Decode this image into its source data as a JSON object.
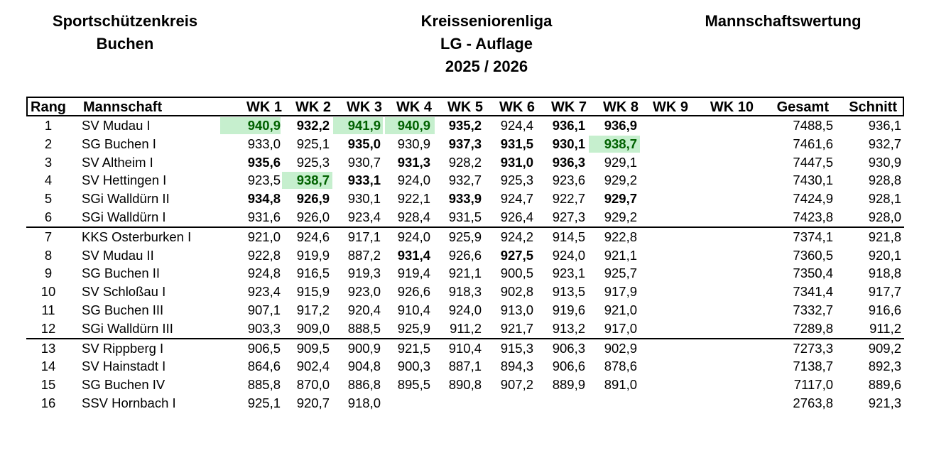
{
  "header": {
    "left": [
      "Sportschützenkreis",
      "Buchen"
    ],
    "center": [
      "Kreisseniorenliga",
      "LG - Auflage",
      "2025 / 2026"
    ],
    "right": "Mannschaftswertung"
  },
  "columns": [
    "Rang",
    "Mannschaft",
    "WK 1",
    "WK 2",
    "WK 3",
    "WK 4",
    "WK 5",
    "WK 6",
    "WK 7",
    "WK 8",
    "WK 9",
    "WK 10",
    "Gesamt",
    "Schnitt"
  ],
  "colors": {
    "highlight_bg": "#c6efce",
    "highlight_text": "#006100"
  },
  "rows": [
    {
      "rank": "1",
      "team": "SV Mudau I",
      "wk": [
        "940,9",
        "932,2",
        "941,9",
        "940,9",
        "935,2",
        "924,4",
        "936,1",
        "936,9",
        "",
        ""
      ],
      "bold": [
        1,
        1,
        1,
        1,
        1,
        0,
        1,
        1,
        0,
        0
      ],
      "hl": [
        1,
        0,
        1,
        1,
        0,
        0,
        0,
        0,
        0,
        0
      ],
      "gesamt": "7488,5",
      "schnitt": "936,1"
    },
    {
      "rank": "2",
      "team": "SG Buchen I",
      "wk": [
        "933,0",
        "925,1",
        "935,0",
        "930,9",
        "937,3",
        "931,5",
        "930,1",
        "938,7",
        "",
        ""
      ],
      "bold": [
        0,
        0,
        1,
        0,
        1,
        1,
        1,
        1,
        0,
        0
      ],
      "hl": [
        0,
        0,
        0,
        0,
        0,
        0,
        0,
        1,
        0,
        0
      ],
      "gesamt": "7461,6",
      "schnitt": "932,7"
    },
    {
      "rank": "3",
      "team": "SV Altheim I",
      "wk": [
        "935,6",
        "925,3",
        "930,7",
        "931,3",
        "928,2",
        "931,0",
        "936,3",
        "929,1",
        "",
        ""
      ],
      "bold": [
        1,
        0,
        0,
        1,
        0,
        1,
        1,
        0,
        0,
        0
      ],
      "hl": [
        0,
        0,
        0,
        0,
        0,
        0,
        0,
        0,
        0,
        0
      ],
      "gesamt": "7447,5",
      "schnitt": "930,9"
    },
    {
      "rank": "4",
      "team": "SV Hettingen I",
      "wk": [
        "923,5",
        "938,7",
        "933,1",
        "924,0",
        "932,7",
        "925,3",
        "923,6",
        "929,2",
        "",
        ""
      ],
      "bold": [
        0,
        1,
        1,
        0,
        0,
        0,
        0,
        0,
        0,
        0
      ],
      "hl": [
        0,
        1,
        0,
        0,
        0,
        0,
        0,
        0,
        0,
        0
      ],
      "gesamt": "7430,1",
      "schnitt": "928,8"
    },
    {
      "rank": "5",
      "team": "SGi Walldürn II",
      "wk": [
        "934,8",
        "926,9",
        "930,1",
        "922,1",
        "933,9",
        "924,7",
        "922,7",
        "929,7",
        "",
        ""
      ],
      "bold": [
        1,
        1,
        0,
        0,
        1,
        0,
        0,
        1,
        0,
        0
      ],
      "hl": [
        0,
        0,
        0,
        0,
        0,
        0,
        0,
        0,
        0,
        0
      ],
      "gesamt": "7424,9",
      "schnitt": "928,1"
    },
    {
      "rank": "6",
      "team": "SGi Walldürn I",
      "wk": [
        "931,6",
        "926,0",
        "923,4",
        "928,4",
        "931,5",
        "926,4",
        "927,3",
        "929,2",
        "",
        ""
      ],
      "bold": [
        0,
        0,
        0,
        0,
        0,
        0,
        0,
        0,
        0,
        0
      ],
      "hl": [
        0,
        0,
        0,
        0,
        0,
        0,
        0,
        0,
        0,
        0
      ],
      "gesamt": "7423,8",
      "schnitt": "928,0"
    },
    {
      "rank": "7",
      "team": "KKS Osterburken  I",
      "wk": [
        "921,0",
        "924,6",
        "917,1",
        "924,0",
        "925,9",
        "924,2",
        "914,5",
        "922,8",
        "",
        ""
      ],
      "bold": [
        0,
        0,
        0,
        0,
        0,
        0,
        0,
        0,
        0,
        0
      ],
      "hl": [
        0,
        0,
        0,
        0,
        0,
        0,
        0,
        0,
        0,
        0
      ],
      "gesamt": "7374,1",
      "schnitt": "921,8",
      "sep": true
    },
    {
      "rank": "8",
      "team": "SV Mudau II",
      "wk": [
        "922,8",
        "919,9",
        "887,2",
        "931,4",
        "926,6",
        "927,5",
        "924,0",
        "921,1",
        "",
        ""
      ],
      "bold": [
        0,
        0,
        0,
        1,
        0,
        1,
        0,
        0,
        0,
        0
      ],
      "hl": [
        0,
        0,
        0,
        0,
        0,
        0,
        0,
        0,
        0,
        0
      ],
      "gesamt": "7360,5",
      "schnitt": "920,1"
    },
    {
      "rank": "9",
      "team": "SG Buchen II",
      "wk": [
        "924,8",
        "916,5",
        "919,3",
        "919,4",
        "921,1",
        "900,5",
        "923,1",
        "925,7",
        "",
        ""
      ],
      "bold": [
        0,
        0,
        0,
        0,
        0,
        0,
        0,
        0,
        0,
        0
      ],
      "hl": [
        0,
        0,
        0,
        0,
        0,
        0,
        0,
        0,
        0,
        0
      ],
      "gesamt": "7350,4",
      "schnitt": "918,8"
    },
    {
      "rank": "10",
      "team": "SV Schloßau I",
      "wk": [
        "923,4",
        "915,9",
        "923,0",
        "926,6",
        "918,3",
        "902,8",
        "913,5",
        "917,9",
        "",
        ""
      ],
      "bold": [
        0,
        0,
        0,
        0,
        0,
        0,
        0,
        0,
        0,
        0
      ],
      "hl": [
        0,
        0,
        0,
        0,
        0,
        0,
        0,
        0,
        0,
        0
      ],
      "gesamt": "7341,4",
      "schnitt": "917,7"
    },
    {
      "rank": "11",
      "team": "SG Buchen III",
      "wk": [
        "907,1",
        "917,2",
        "920,4",
        "910,4",
        "924,0",
        "913,0",
        "919,6",
        "921,0",
        "",
        ""
      ],
      "bold": [
        0,
        0,
        0,
        0,
        0,
        0,
        0,
        0,
        0,
        0
      ],
      "hl": [
        0,
        0,
        0,
        0,
        0,
        0,
        0,
        0,
        0,
        0
      ],
      "gesamt": "7332,7",
      "schnitt": "916,6"
    },
    {
      "rank": "12",
      "team": "SGi Walldürn III",
      "wk": [
        "903,3",
        "909,0",
        "888,5",
        "925,9",
        "911,2",
        "921,7",
        "913,2",
        "917,0",
        "",
        ""
      ],
      "bold": [
        0,
        0,
        0,
        0,
        0,
        0,
        0,
        0,
        0,
        0
      ],
      "hl": [
        0,
        0,
        0,
        0,
        0,
        0,
        0,
        0,
        0,
        0
      ],
      "gesamt": "7289,8",
      "schnitt": "911,2"
    },
    {
      "rank": "13",
      "team": "SV Rippberg I",
      "wk": [
        "906,5",
        "909,5",
        "900,9",
        "921,5",
        "910,4",
        "915,3",
        "906,3",
        "902,9",
        "",
        ""
      ],
      "bold": [
        0,
        0,
        0,
        0,
        0,
        0,
        0,
        0,
        0,
        0
      ],
      "hl": [
        0,
        0,
        0,
        0,
        0,
        0,
        0,
        0,
        0,
        0
      ],
      "gesamt": "7273,3",
      "schnitt": "909,2",
      "sep": true
    },
    {
      "rank": "14",
      "team": "SV Hainstadt I",
      "wk": [
        "864,6",
        "902,4",
        "904,8",
        "900,3",
        "887,1",
        "894,3",
        "906,6",
        "878,6",
        "",
        ""
      ],
      "bold": [
        0,
        0,
        0,
        0,
        0,
        0,
        0,
        0,
        0,
        0
      ],
      "hl": [
        0,
        0,
        0,
        0,
        0,
        0,
        0,
        0,
        0,
        0
      ],
      "gesamt": "7138,7",
      "schnitt": "892,3"
    },
    {
      "rank": "15",
      "team": "SG Buchen IV",
      "wk": [
        "885,8",
        "870,0",
        "886,8",
        "895,5",
        "890,8",
        "907,2",
        "889,9",
        "891,0",
        "",
        ""
      ],
      "bold": [
        0,
        0,
        0,
        0,
        0,
        0,
        0,
        0,
        0,
        0
      ],
      "hl": [
        0,
        0,
        0,
        0,
        0,
        0,
        0,
        0,
        0,
        0
      ],
      "gesamt": "7117,0",
      "schnitt": "889,6"
    },
    {
      "rank": "16",
      "team": "SSV Hornbach I",
      "wk": [
        "925,1",
        "920,7",
        "918,0",
        "",
        "",
        "",
        "",
        "",
        "",
        ""
      ],
      "bold": [
        0,
        0,
        0,
        0,
        0,
        0,
        0,
        0,
        0,
        0
      ],
      "hl": [
        0,
        0,
        0,
        0,
        0,
        0,
        0,
        0,
        0,
        0
      ],
      "gesamt": "2763,8",
      "schnitt": "921,3"
    }
  ]
}
